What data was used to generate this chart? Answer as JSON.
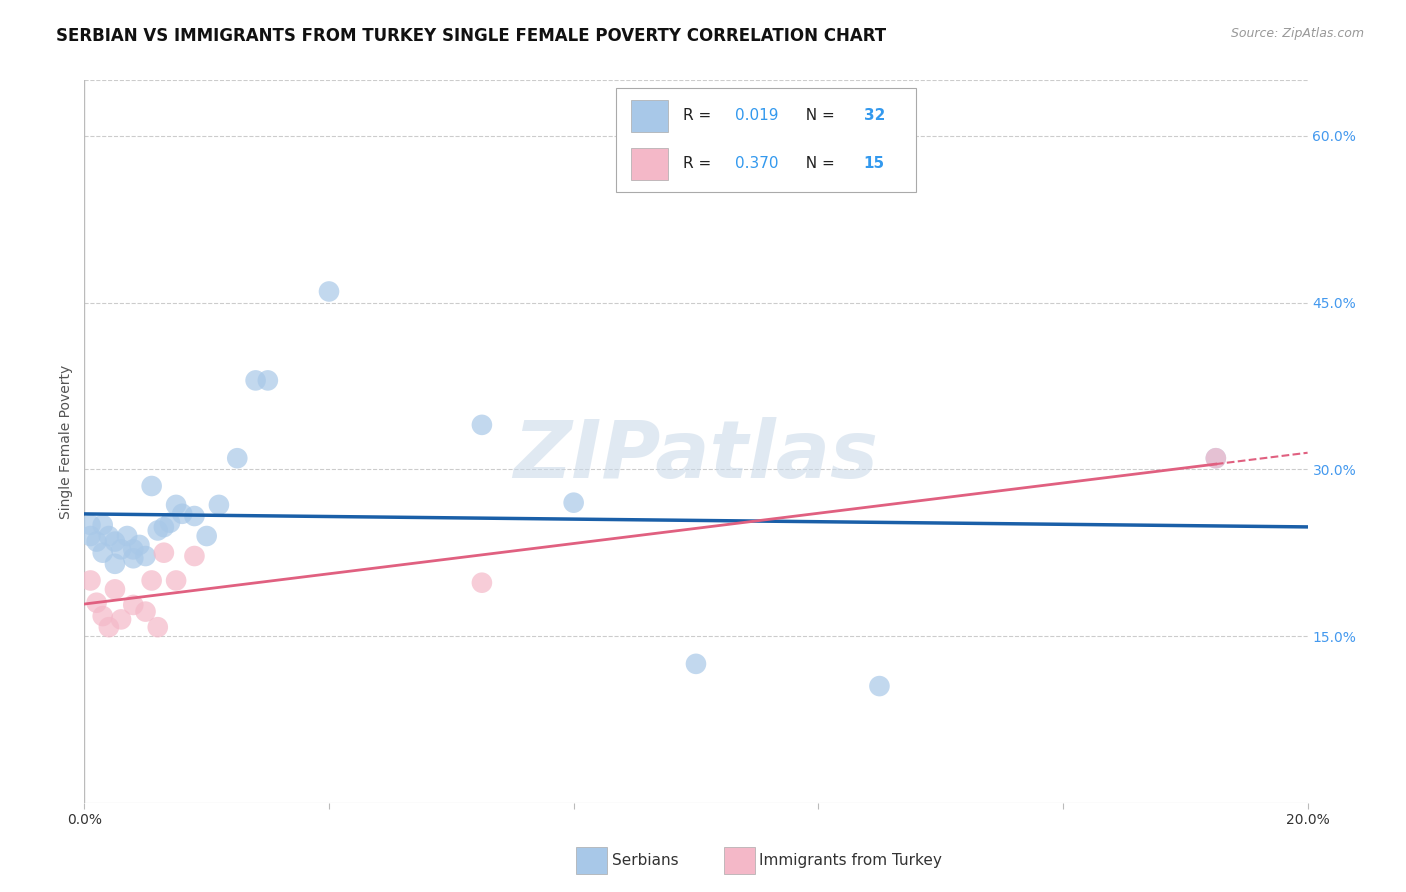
{
  "title": "SERBIAN VS IMMIGRANTS FROM TURKEY SINGLE FEMALE POVERTY CORRELATION CHART",
  "source": "Source: ZipAtlas.com",
  "ylabel": "Single Female Poverty",
  "xlim": [
    0.0,
    0.2
  ],
  "ylim": [
    0.0,
    0.65
  ],
  "serbian_R": "0.019",
  "serbian_N": "32",
  "turkey_R": "0.370",
  "turkey_N": "15",
  "serbian_color": "#a8c8e8",
  "turkey_color": "#f4b8c8",
  "serbian_line_color": "#1a5fa8",
  "turkey_line_color": "#e06080",
  "background_color": "#ffffff",
  "grid_color": "#cccccc",
  "watermark": "ZIPatlas",
  "serbian_x": [
    0.001,
    0.001,
    0.002,
    0.003,
    0.003,
    0.004,
    0.005,
    0.005,
    0.006,
    0.007,
    0.008,
    0.008,
    0.009,
    0.01,
    0.011,
    0.012,
    0.013,
    0.014,
    0.015,
    0.016,
    0.018,
    0.02,
    0.022,
    0.025,
    0.028,
    0.03,
    0.04,
    0.065,
    0.08,
    0.1,
    0.13,
    0.185
  ],
  "serbian_y": [
    0.25,
    0.24,
    0.235,
    0.25,
    0.225,
    0.24,
    0.235,
    0.215,
    0.228,
    0.24,
    0.22,
    0.228,
    0.232,
    0.222,
    0.285,
    0.245,
    0.248,
    0.252,
    0.268,
    0.26,
    0.258,
    0.24,
    0.268,
    0.31,
    0.38,
    0.38,
    0.46,
    0.34,
    0.27,
    0.125,
    0.105,
    0.31
  ],
  "turkish_x": [
    0.001,
    0.002,
    0.003,
    0.004,
    0.005,
    0.006,
    0.008,
    0.01,
    0.011,
    0.012,
    0.013,
    0.015,
    0.018,
    0.065,
    0.185
  ],
  "turkish_y": [
    0.2,
    0.18,
    0.168,
    0.158,
    0.192,
    0.165,
    0.178,
    0.172,
    0.2,
    0.158,
    0.225,
    0.2,
    0.222,
    0.198,
    0.31
  ],
  "title_fontsize": 12,
  "axis_fontsize": 10,
  "tick_fontsize": 10,
  "legend_fontsize": 11,
  "source_fontsize": 9
}
